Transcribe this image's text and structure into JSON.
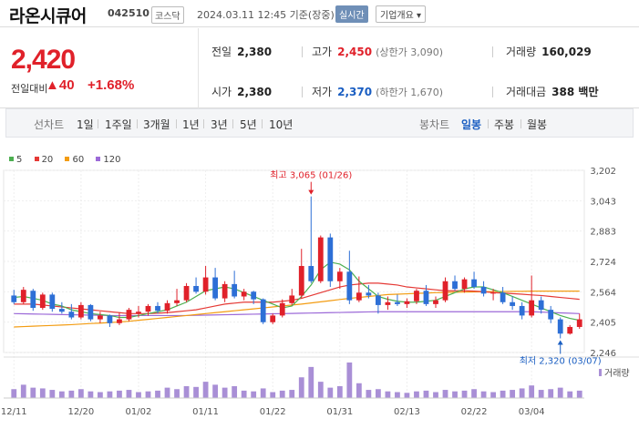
{
  "header": {
    "name": "라온시큐어",
    "code": "042510",
    "market_badge": "코스닥",
    "timestamp": "2024.03.11 12:45 기준(장중)",
    "realtime_badge": "실시간",
    "company_info_button": "기업개요 ▾"
  },
  "quote": {
    "price": "2,420",
    "change_label": "전일대비",
    "change_arrow": "▲",
    "change": "40",
    "change_pct": "+1.68%",
    "items": {
      "prev_close": {
        "label": "전일",
        "value": "2,380"
      },
      "high": {
        "label": "고가",
        "value": "2,450",
        "sub": "(상한가 3,090)"
      },
      "volume": {
        "label": "거래량",
        "value": "160,029"
      },
      "open": {
        "label": "시가",
        "value": "2,380"
      },
      "low": {
        "label": "저가",
        "value": "2,370",
        "sub": "(하한가 1,670)"
      },
      "amount": {
        "label": "거래대금",
        "value": "388 백만"
      }
    },
    "colors": {
      "up": "#e0212a",
      "down": "#1a5ec2"
    }
  },
  "toolbar": {
    "line_label": "선차트",
    "periods": [
      "1일",
      "1주일",
      "3개월",
      "1년",
      "3년",
      "5년",
      "10년"
    ],
    "candle_label": "봉차트",
    "candle_periods": [
      "일봉",
      "주봉",
      "월봉"
    ],
    "active_candle": "일봉"
  },
  "legend": [
    {
      "label": "5",
      "color": "#4caf50"
    },
    {
      "label": "20",
      "color": "#e53935"
    },
    {
      "label": "60",
      "color": "#f39c12"
    },
    {
      "label": "120",
      "color": "#9c6ad8"
    }
  ],
  "chart_data": {
    "type": "candlestick",
    "y_ticks": [
      "3,202",
      "3,043",
      "2,883",
      "2,724",
      "2,564",
      "2,405",
      "2,246"
    ],
    "ylim": [
      2246,
      3202
    ],
    "x_ticks": [
      "12/11",
      "12/20",
      "01/02",
      "01/11",
      "01/22",
      "01/31",
      "02/13",
      "02/22",
      "03/04"
    ],
    "max_annotation": "최고 3,065 (01/26)",
    "min_annotation": "최저 2,320 (03/07)",
    "volume_label": "거래량",
    "colors": {
      "up": "#e0212a",
      "down": "#2d6fd6",
      "ma5": "#4caf50",
      "ma20": "#e53935",
      "ma60": "#f39c12",
      "ma120": "#9c6ad8",
      "volume": "#a98fd6"
    },
    "candles": [
      {
        "d": "12/11",
        "o": 2545,
        "h": 2575,
        "l": 2500,
        "c": 2510,
        "v": 12
      },
      {
        "d": "12/12",
        "o": 2510,
        "h": 2590,
        "l": 2500,
        "c": 2575,
        "v": 18
      },
      {
        "d": "12/13",
        "o": 2570,
        "h": 2580,
        "l": 2465,
        "c": 2480,
        "v": 14
      },
      {
        "d": "12/14",
        "o": 2480,
        "h": 2560,
        "l": 2470,
        "c": 2550,
        "v": 13
      },
      {
        "d": "12/15",
        "o": 2550,
        "h": 2560,
        "l": 2460,
        "c": 2475,
        "v": 11
      },
      {
        "d": "12/18",
        "o": 2475,
        "h": 2510,
        "l": 2450,
        "c": 2460,
        "v": 9
      },
      {
        "d": "12/19",
        "o": 2460,
        "h": 2500,
        "l": 2420,
        "c": 2430,
        "v": 10
      },
      {
        "d": "12/20",
        "o": 2430,
        "h": 2510,
        "l": 2420,
        "c": 2495,
        "v": 12
      },
      {
        "d": "12/21",
        "o": 2495,
        "h": 2500,
        "l": 2410,
        "c": 2420,
        "v": 9
      },
      {
        "d": "12/22",
        "o": 2420,
        "h": 2460,
        "l": 2400,
        "c": 2440,
        "v": 8
      },
      {
        "d": "12/26",
        "o": 2440,
        "h": 2445,
        "l": 2380,
        "c": 2400,
        "v": 9
      },
      {
        "d": "12/27",
        "o": 2400,
        "h": 2455,
        "l": 2390,
        "c": 2420,
        "v": 10
      },
      {
        "d": "12/28",
        "o": 2420,
        "h": 2480,
        "l": 2410,
        "c": 2470,
        "v": 11
      },
      {
        "d": "01/02",
        "o": 2450,
        "h": 2490,
        "l": 2430,
        "c": 2460,
        "v": 8
      },
      {
        "d": "01/03",
        "o": 2460,
        "h": 2500,
        "l": 2440,
        "c": 2490,
        "v": 9
      },
      {
        "d": "01/04",
        "o": 2490,
        "h": 2510,
        "l": 2450,
        "c": 2465,
        "v": 10
      },
      {
        "d": "01/05",
        "o": 2465,
        "h": 2520,
        "l": 2450,
        "c": 2505,
        "v": 14
      },
      {
        "d": "01/08",
        "o": 2505,
        "h": 2580,
        "l": 2490,
        "c": 2520,
        "v": 12
      },
      {
        "d": "01/09",
        "o": 2520,
        "h": 2610,
        "l": 2510,
        "c": 2595,
        "v": 16
      },
      {
        "d": "01/10",
        "o": 2595,
        "h": 2640,
        "l": 2555,
        "c": 2565,
        "v": 15
      },
      {
        "d": "01/11",
        "o": 2565,
        "h": 2700,
        "l": 2550,
        "c": 2640,
        "v": 22
      },
      {
        "d": "01/12",
        "o": 2640,
        "h": 2690,
        "l": 2520,
        "c": 2530,
        "v": 18
      },
      {
        "d": "01/15",
        "o": 2530,
        "h": 2620,
        "l": 2510,
        "c": 2605,
        "v": 14
      },
      {
        "d": "01/16",
        "o": 2605,
        "h": 2675,
        "l": 2530,
        "c": 2540,
        "v": 16
      },
      {
        "d": "01/17",
        "o": 2540,
        "h": 2580,
        "l": 2520,
        "c": 2565,
        "v": 10
      },
      {
        "d": "01/18",
        "o": 2565,
        "h": 2570,
        "l": 2500,
        "c": 2525,
        "v": 9
      },
      {
        "d": "01/19",
        "o": 2525,
        "h": 2530,
        "l": 2395,
        "c": 2405,
        "v": 13
      },
      {
        "d": "01/22",
        "o": 2405,
        "h": 2450,
        "l": 2395,
        "c": 2440,
        "v": 8
      },
      {
        "d": "01/23",
        "o": 2440,
        "h": 2525,
        "l": 2430,
        "c": 2505,
        "v": 10
      },
      {
        "d": "01/24",
        "o": 2505,
        "h": 2580,
        "l": 2495,
        "c": 2545,
        "v": 11
      },
      {
        "d": "01/25",
        "o": 2545,
        "h": 2790,
        "l": 2530,
        "c": 2700,
        "v": 28
      },
      {
        "d": "01/26",
        "o": 2700,
        "h": 3065,
        "l": 2610,
        "c": 2620,
        "v": 42
      },
      {
        "d": "01/29",
        "o": 2620,
        "h": 2860,
        "l": 2610,
        "c": 2850,
        "v": 22
      },
      {
        "d": "01/30",
        "o": 2850,
        "h": 2870,
        "l": 2590,
        "c": 2620,
        "v": 14
      },
      {
        "d": "01/31",
        "o": 2620,
        "h": 2690,
        "l": 2580,
        "c": 2670,
        "v": 16
      },
      {
        "d": "02/01",
        "o": 2670,
        "h": 2780,
        "l": 2500,
        "c": 2520,
        "v": 48
      },
      {
        "d": "02/02",
        "o": 2520,
        "h": 2645,
        "l": 2510,
        "c": 2560,
        "v": 20
      },
      {
        "d": "02/05",
        "o": 2560,
        "h": 2600,
        "l": 2530,
        "c": 2545,
        "v": 11
      },
      {
        "d": "02/06",
        "o": 2545,
        "h": 2560,
        "l": 2450,
        "c": 2495,
        "v": 12
      },
      {
        "d": "02/07",
        "o": 2495,
        "h": 2540,
        "l": 2470,
        "c": 2510,
        "v": 9
      },
      {
        "d": "02/08",
        "o": 2510,
        "h": 2550,
        "l": 2490,
        "c": 2500,
        "v": 8
      },
      {
        "d": "02/13",
        "o": 2500,
        "h": 2530,
        "l": 2480,
        "c": 2515,
        "v": 7
      },
      {
        "d": "02/14",
        "o": 2515,
        "h": 2580,
        "l": 2500,
        "c": 2570,
        "v": 9
      },
      {
        "d": "02/15",
        "o": 2570,
        "h": 2600,
        "l": 2490,
        "c": 2500,
        "v": 10
      },
      {
        "d": "02/16",
        "o": 2500,
        "h": 2540,
        "l": 2480,
        "c": 2520,
        "v": 8
      },
      {
        "d": "02/19",
        "o": 2520,
        "h": 2640,
        "l": 2510,
        "c": 2620,
        "v": 11
      },
      {
        "d": "02/20",
        "o": 2620,
        "h": 2650,
        "l": 2570,
        "c": 2580,
        "v": 9
      },
      {
        "d": "02/21",
        "o": 2580,
        "h": 2640,
        "l": 2560,
        "c": 2630,
        "v": 10
      },
      {
        "d": "02/22",
        "o": 2630,
        "h": 2670,
        "l": 2580,
        "c": 2590,
        "v": 12
      },
      {
        "d": "02/23",
        "o": 2590,
        "h": 2620,
        "l": 2540,
        "c": 2555,
        "v": 9
      },
      {
        "d": "02/26",
        "o": 2555,
        "h": 2580,
        "l": 2520,
        "c": 2560,
        "v": 8
      },
      {
        "d": "02/27",
        "o": 2560,
        "h": 2590,
        "l": 2500,
        "c": 2510,
        "v": 10
      },
      {
        "d": "02/28",
        "o": 2510,
        "h": 2540,
        "l": 2470,
        "c": 2490,
        "v": 11
      },
      {
        "d": "02/29",
        "o": 2490,
        "h": 2510,
        "l": 2420,
        "c": 2440,
        "v": 13
      },
      {
        "d": "03/04",
        "o": 2440,
        "h": 2650,
        "l": 2430,
        "c": 2520,
        "v": 17
      },
      {
        "d": "03/05",
        "o": 2520,
        "h": 2540,
        "l": 2450,
        "c": 2470,
        "v": 11
      },
      {
        "d": "03/06",
        "o": 2470,
        "h": 2490,
        "l": 2400,
        "c": 2420,
        "v": 12
      },
      {
        "d": "03/07",
        "o": 2420,
        "h": 2430,
        "l": 2320,
        "c": 2345,
        "v": 14
      },
      {
        "d": "03/08",
        "o": 2345,
        "h": 2390,
        "l": 2340,
        "c": 2380,
        "v": 9
      },
      {
        "d": "03/11",
        "o": 2380,
        "h": 2450,
        "l": 2370,
        "c": 2420,
        "v": 10
      }
    ],
    "ma": {
      "ma5": [
        2535,
        2540,
        2530,
        2520,
        2500,
        2490,
        2470,
        2460,
        2450,
        2445,
        2440,
        2430,
        2430,
        2440,
        2450,
        2460,
        2470,
        2490,
        2510,
        2540,
        2570,
        2580,
        2590,
        2580,
        2560,
        2540,
        2520,
        2500,
        2480,
        2490,
        2540,
        2600,
        2680,
        2720,
        2710,
        2680,
        2620,
        2580,
        2540,
        2525,
        2515,
        2510,
        2510,
        2515,
        2520,
        2540,
        2560,
        2580,
        2590,
        2590,
        2575,
        2560,
        2540,
        2520,
        2500,
        2480,
        2460,
        2440,
        2425,
        2415
      ],
      "ma20": [
        2500,
        2500,
        2500,
        2495,
        2490,
        2485,
        2480,
        2475,
        2470,
        2465,
        2460,
        2455,
        2450,
        2450,
        2450,
        2452,
        2455,
        2460,
        2465,
        2470,
        2480,
        2490,
        2500,
        2505,
        2510,
        2510,
        2510,
        2510,
        2515,
        2520,
        2530,
        2545,
        2560,
        2575,
        2590,
        2600,
        2605,
        2610,
        2610,
        2605,
        2600,
        2590,
        2585,
        2580,
        2575,
        2570,
        2570,
        2570,
        2568,
        2565,
        2560,
        2558,
        2555,
        2552,
        2548,
        2545,
        2540,
        2535,
        2530,
        2525
      ],
      "ma60": [
        2380,
        2382,
        2384,
        2386,
        2388,
        2390,
        2392,
        2395,
        2398,
        2400,
        2403,
        2406,
        2410,
        2415,
        2420,
        2425,
        2430,
        2435,
        2440,
        2445,
        2450,
        2455,
        2460,
        2465,
        2470,
        2475,
        2480,
        2485,
        2490,
        2495,
        2500,
        2506,
        2512,
        2518,
        2524,
        2530,
        2535,
        2540,
        2545,
        2550,
        2552,
        2554,
        2556,
        2558,
        2560,
        2561,
        2562,
        2563,
        2564,
        2565,
        2566,
        2566,
        2567,
        2567,
        2568,
        2568,
        2568,
        2568,
        2568,
        2568
      ],
      "ma120": [
        2450,
        2449,
        2448,
        2447,
        2446,
        2445,
        2444,
        2443,
        2442,
        2441,
        2440,
        2440,
        2440,
        2440,
        2440,
        2440,
        2440,
        2440,
        2440,
        2441,
        2442,
        2443,
        2444,
        2445,
        2446,
        2447,
        2448,
        2449,
        2450,
        2451,
        2452,
        2453,
        2454,
        2455,
        2456,
        2457,
        2458,
        2459,
        2460,
        2460,
        2460,
        2460,
        2460,
        2460,
        2460,
        2460,
        2460,
        2460,
        2460,
        2460,
        2460,
        2460,
        2460,
        2460,
        2460,
        2458,
        2456,
        2454,
        2452,
        2450
      ]
    }
  }
}
